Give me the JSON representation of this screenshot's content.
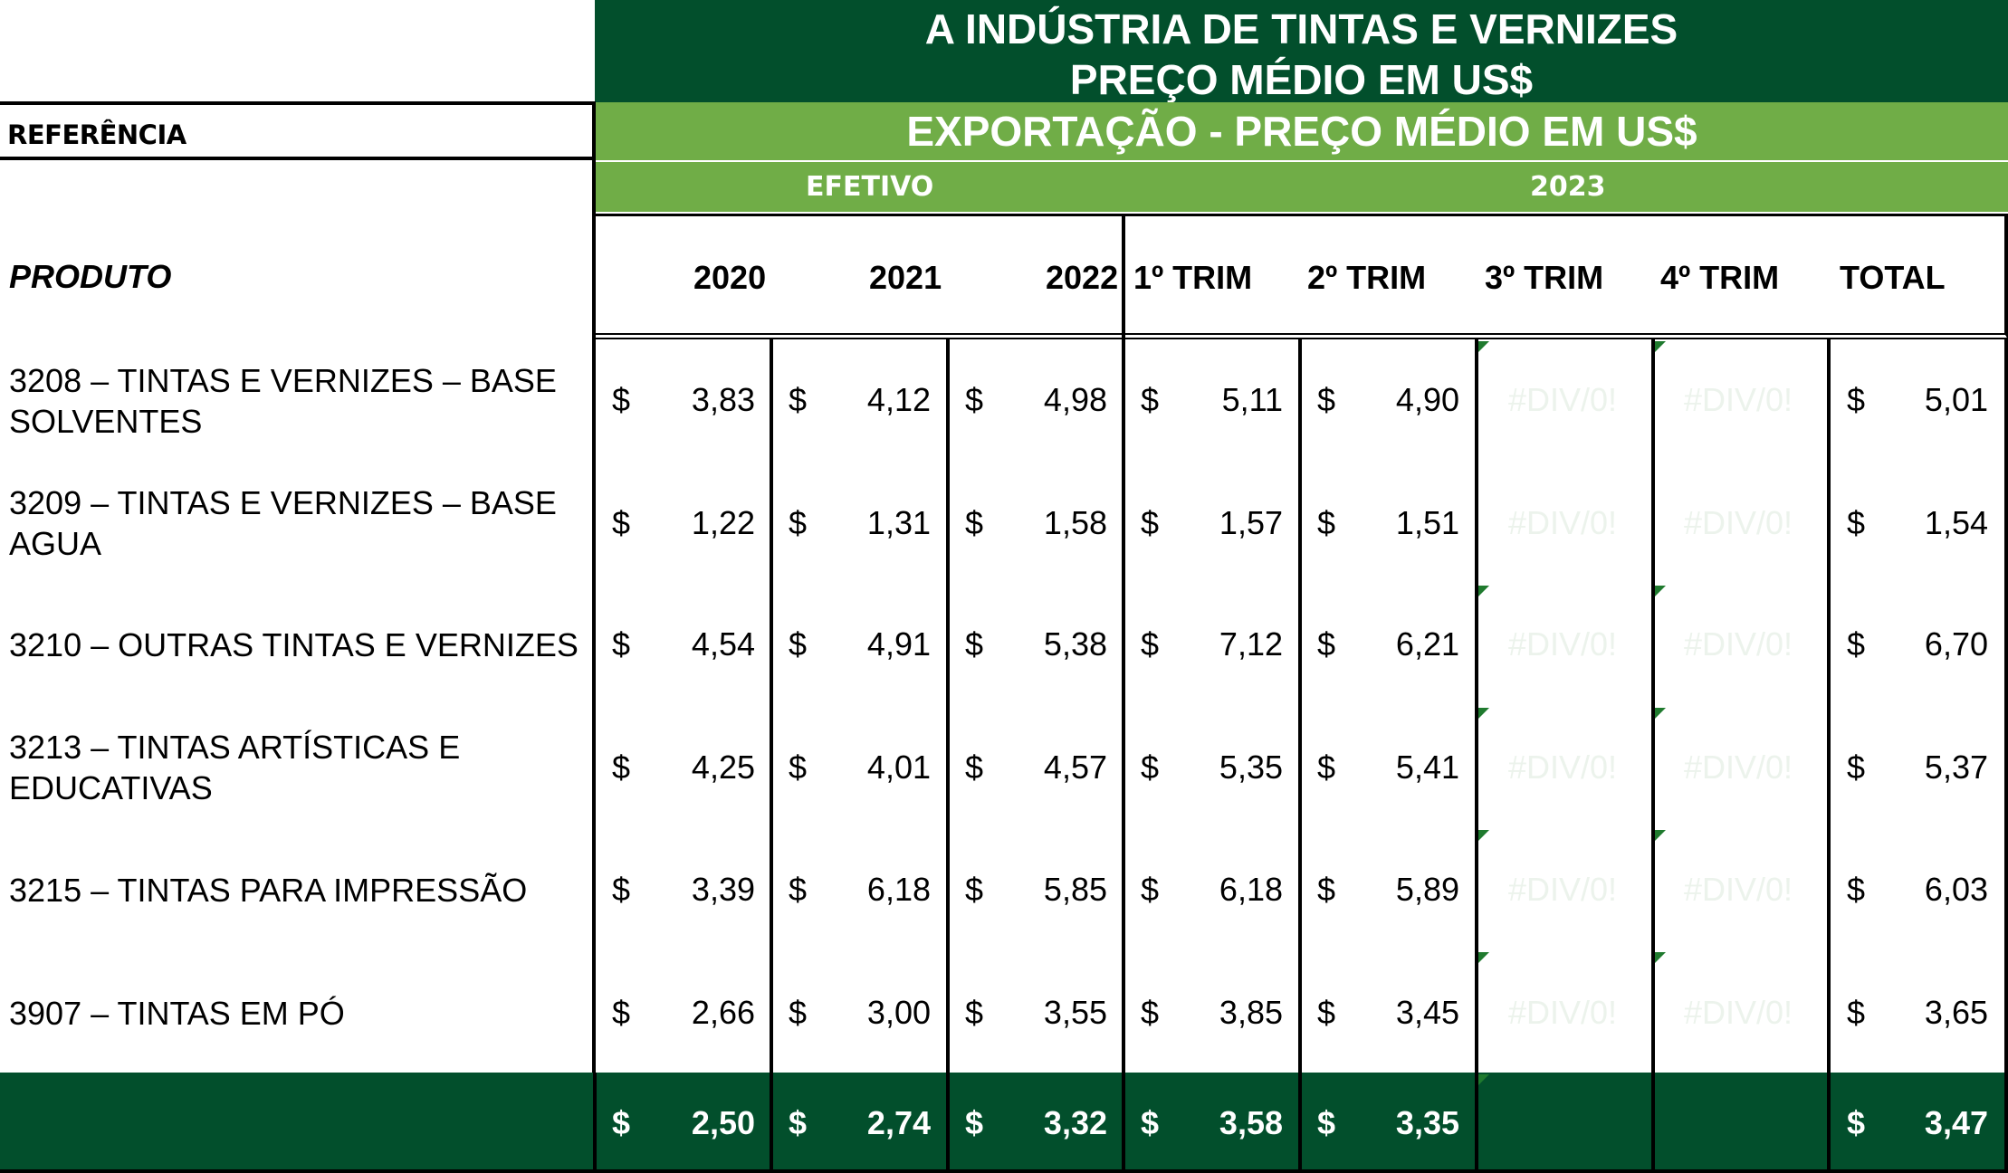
{
  "title": {
    "line1": "A INDÚSTRIA DE TINTAS E VERNIZES",
    "line2": "PREÇO MÉDIO EM US$"
  },
  "reference_label": "REFERÊNCIA",
  "export_header": "EXPORTAÇÃO - PREÇO MÉDIO EM US$",
  "group_headers": {
    "efetivo": "EFETIVO",
    "year": "2023"
  },
  "produto_label": "PRODUTO",
  "columns": [
    "2020",
    "2021",
    "2022",
    "1º TRIM",
    "2º TRIM",
    "3º TRIM",
    "4º TRIM",
    "TOTAL"
  ],
  "currency": "$",
  "error_value": "#DIV/0!",
  "rows": [
    {
      "name": "3208 – TINTAS E VERNIZES – BASE SOLVENTES",
      "values": [
        "3,83",
        "4,12",
        "4,98",
        "5,11",
        "4,90",
        "#DIV/0!",
        "#DIV/0!",
        "5,01"
      ]
    },
    {
      "name": "3209 – TINTAS E VERNIZES – BASE AGUA",
      "values": [
        "1,22",
        "1,31",
        "1,58",
        "1,57",
        "1,51",
        "#DIV/0!",
        "#DIV/0!",
        "1,54"
      ]
    },
    {
      "name": "3210 – OUTRAS TINTAS E VERNIZES",
      "values": [
        "4,54",
        "4,91",
        "5,38",
        "7,12",
        "6,21",
        "#DIV/0!",
        "#DIV/0!",
        "6,70"
      ]
    },
    {
      "name": "3213 – TINTAS ARTÍSTICAS E EDUCATIVAS",
      "values": [
        "4,25",
        "4,01",
        "4,57",
        "5,35",
        "5,41",
        "#DIV/0!",
        "#DIV/0!",
        "5,37"
      ]
    },
    {
      "name": "3215 – TINTAS PARA IMPRESSÃO",
      "values": [
        "3,39",
        "6,18",
        "5,85",
        "6,18",
        "5,89",
        "#DIV/0!",
        "#DIV/0!",
        "6,03"
      ]
    },
    {
      "name": "3907 – TINTAS EM PÓ",
      "values": [
        "2,66",
        "3,00",
        "3,55",
        "3,85",
        "3,45",
        "#DIV/0!",
        "#DIV/0!",
        "3,65"
      ]
    }
  ],
  "total_row": {
    "values": [
      "2,50",
      "2,74",
      "3,32",
      "3,58",
      "3,35",
      "",
      "",
      "3,47"
    ]
  },
  "colors": {
    "dark_green": "#024f2c",
    "light_green": "#70ad47",
    "text_white": "#ffffff"
  }
}
